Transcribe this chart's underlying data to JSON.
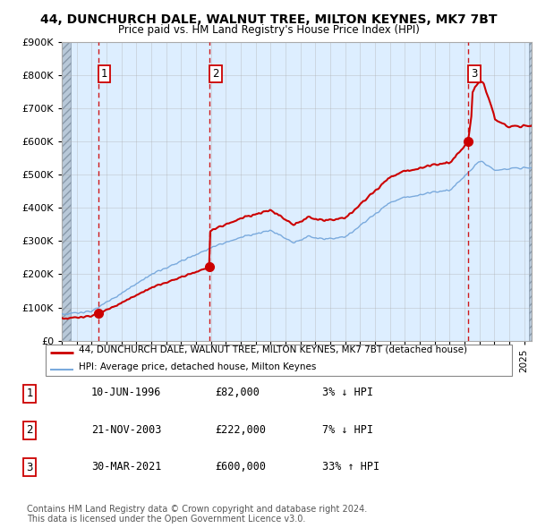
{
  "title": "44, DUNCHURCH DALE, WALNUT TREE, MILTON KEYNES, MK7 7BT",
  "subtitle": "Price paid vs. HM Land Registry's House Price Index (HPI)",
  "ylim": [
    0,
    900000
  ],
  "yticks": [
    0,
    100000,
    200000,
    300000,
    400000,
    500000,
    600000,
    700000,
    800000,
    900000
  ],
  "ytick_labels": [
    "£0",
    "£100K",
    "£200K",
    "£300K",
    "£400K",
    "£500K",
    "£600K",
    "£700K",
    "£800K",
    "£900K"
  ],
  "plot_bg_color": "#ddeeff",
  "grid_color": "#aaaaaa",
  "sale_color": "#cc0000",
  "hpi_color": "#7aaadd",
  "hpi_linewidth": 1.0,
  "sale_linewidth": 1.5,
  "transactions": [
    {
      "date": 1996.44,
      "price": 82000,
      "label": "1"
    },
    {
      "date": 2003.89,
      "price": 222000,
      "label": "2"
    },
    {
      "date": 2021.24,
      "price": 600000,
      "label": "3"
    }
  ],
  "legend_entries": [
    "44, DUNCHURCH DALE, WALNUT TREE, MILTON KEYNES, MK7 7BT (detached house)",
    "HPI: Average price, detached house, Milton Keynes"
  ],
  "table_rows": [
    {
      "num": "1",
      "date": "10-JUN-1996",
      "price": "£82,000",
      "hpi": "3% ↓ HPI"
    },
    {
      "num": "2",
      "date": "21-NOV-2003",
      "price": "£222,000",
      "hpi": "7% ↓ HPI"
    },
    {
      "num": "3",
      "date": "30-MAR-2021",
      "price": "£600,000",
      "hpi": "33% ↑ HPI"
    }
  ],
  "footnote1": "Contains HM Land Registry data © Crown copyright and database right 2024.",
  "footnote2": "This data is licensed under the Open Government Licence v3.0.",
  "xmin": 1994,
  "xmax": 2025.5
}
